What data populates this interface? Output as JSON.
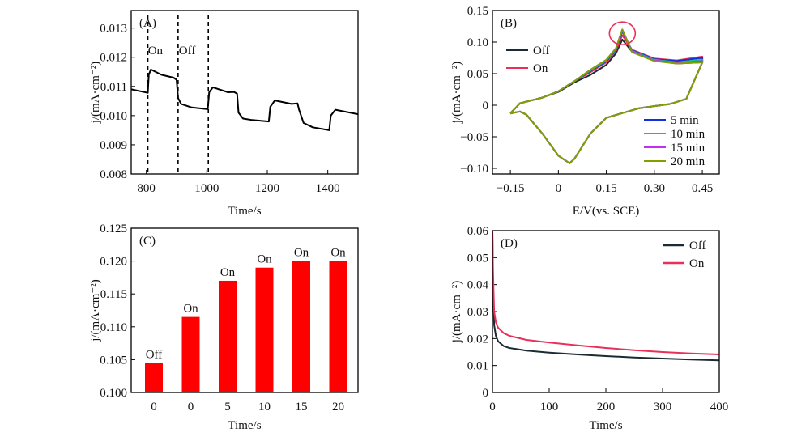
{
  "chart_data": [
    {
      "panel": "(A)",
      "type": "line",
      "xlabel": "Time/s",
      "ylabel": "j/(mA·cm⁻²)",
      "xlim": [
        750,
        1500
      ],
      "ylim": [
        0.008,
        0.0136
      ],
      "xticks": [
        "800",
        "1000",
        "1200",
        "1400"
      ],
      "xtick_values": [
        800,
        1000,
        1200,
        1400
      ],
      "yticks": [
        "0.008",
        "0.009",
        "0.010",
        "0.011",
        "0.012",
        "0.013"
      ],
      "ytick_values": [
        0.008,
        0.009,
        0.01,
        0.011,
        0.012,
        0.013
      ],
      "annotations": [
        {
          "text": "On",
          "x": 830,
          "y": 0.0121
        },
        {
          "text": "Off",
          "x": 935,
          "y": 0.0121
        }
      ],
      "vlines": [
        805,
        905,
        1005
      ],
      "series": [
        {
          "color": "#000000",
          "x": [
            750,
            805,
            808,
            815,
            850,
            890,
            900,
            905,
            915,
            950,
            1003,
            1008,
            1020,
            1070,
            1090,
            1100,
            1105,
            1120,
            1150,
            1205,
            1210,
            1225,
            1280,
            1300,
            1305,
            1320,
            1350,
            1405,
            1410,
            1425,
            1500
          ],
          "y": [
            0.0109,
            0.01078,
            0.0114,
            0.01158,
            0.0114,
            0.0113,
            0.01123,
            0.0106,
            0.0104,
            0.01028,
            0.01022,
            0.0108,
            0.01097,
            0.0108,
            0.01081,
            0.01075,
            0.0101,
            0.0099,
            0.00985,
            0.0098,
            0.0103,
            0.01052,
            0.0104,
            0.01042,
            0.0102,
            0.00975,
            0.0096,
            0.0095,
            0.01,
            0.0102,
            0.01005
          ]
        }
      ]
    },
    {
      "panel": "(B)",
      "type": "line",
      "xlabel": "E/V(vs. SCE)",
      "ylabel": "j/(mA·cm⁻²)",
      "xlim": [
        -0.206,
        0.503
      ],
      "ylim": [
        -0.109,
        0.15
      ],
      "xticks": [
        "−0.15",
        "0",
        "0.15",
        "0.30",
        "0.45"
      ],
      "xtick_values": [
        -0.15,
        0,
        0.15,
        0.3,
        0.45
      ],
      "yticks": [
        "0.15",
        "0.10",
        "0.05",
        "0",
        "−0.05",
        "−0.10"
      ],
      "ytick_values": [
        0.15,
        0.1,
        0.05,
        0,
        -0.05,
        -0.1
      ],
      "highlight_circle": {
        "x": 0.2,
        "y": 0.11,
        "color": "#e8305a"
      },
      "x": [
        -0.15,
        -0.12,
        -0.05,
        0,
        0.05,
        0.1,
        0.15,
        0.18,
        0.2,
        0.23,
        0.3,
        0.37,
        0.45,
        0.45,
        0.4,
        0.35,
        0.25,
        0.15,
        0.1,
        0.05,
        0.035,
        0,
        -0.05,
        -0.1,
        -0.12,
        -0.15
      ],
      "series": [
        {
          "name": "Off",
          "color": "#1c2b33",
          "y": [
            -0.013,
            0.003,
            0.012,
            0.021,
            0.036,
            0.048,
            0.064,
            0.082,
            0.104,
            0.085,
            0.071,
            0.066,
            0.068,
            0.068,
            0.01,
            0.002,
            -0.005,
            -0.02,
            -0.045,
            -0.085,
            -0.092,
            -0.08,
            -0.045,
            -0.015,
            -0.01,
            -0.013
          ]
        },
        {
          "name": "On",
          "color": "#e8305a",
          "y": [
            -0.013,
            0.003,
            0.012,
            0.022,
            0.038,
            0.052,
            0.068,
            0.086,
            0.111,
            0.088,
            0.074,
            0.071,
            0.077,
            0.068,
            0.01,
            0.002,
            -0.005,
            -0.02,
            -0.045,
            -0.085,
            -0.092,
            -0.08,
            -0.045,
            -0.015,
            -0.01,
            -0.013
          ]
        },
        {
          "name": "5 min",
          "color": "#1030e0",
          "y": [
            -0.013,
            0.003,
            0.012,
            0.022,
            0.038,
            0.054,
            0.07,
            0.088,
            0.117,
            0.087,
            0.073,
            0.07,
            0.075,
            0.068,
            0.01,
            0.002,
            -0.005,
            -0.02,
            -0.045,
            -0.085,
            -0.092,
            -0.08,
            -0.045,
            -0.015,
            -0.01,
            -0.013
          ]
        },
        {
          "name": "10 min",
          "color": "#10c090",
          "y": [
            -0.013,
            0.003,
            0.012,
            0.022,
            0.038,
            0.055,
            0.071,
            0.089,
            0.119,
            0.086,
            0.072,
            0.068,
            0.072,
            0.068,
            0.01,
            0.002,
            -0.005,
            -0.02,
            -0.045,
            -0.085,
            -0.092,
            -0.08,
            -0.045,
            -0.015,
            -0.01,
            -0.013
          ]
        },
        {
          "name": "15 min",
          "color": "#c030f0",
          "y": [
            -0.013,
            0.003,
            0.012,
            0.022,
            0.038,
            0.056,
            0.072,
            0.09,
            0.12,
            0.085,
            0.071,
            0.067,
            0.07,
            0.068,
            0.01,
            0.002,
            -0.005,
            -0.02,
            -0.045,
            -0.085,
            -0.092,
            -0.08,
            -0.045,
            -0.015,
            -0.01,
            -0.013
          ]
        },
        {
          "name": "20 min",
          "color": "#80a000",
          "y": [
            -0.013,
            0.003,
            0.012,
            0.022,
            0.038,
            0.056,
            0.072,
            0.09,
            0.12,
            0.084,
            0.07,
            0.066,
            0.068,
            0.068,
            0.01,
            0.002,
            -0.005,
            -0.02,
            -0.045,
            -0.085,
            -0.092,
            -0.08,
            -0.045,
            -0.015,
            -0.01,
            -0.013
          ]
        }
      ]
    },
    {
      "panel": "(C)",
      "type": "bar",
      "xlabel": "Time/s",
      "ylabel": "j/(mA·cm⁻²)",
      "ylim": [
        0.1,
        0.125
      ],
      "categories": [
        "0",
        "0",
        "5",
        "10",
        "15",
        "20"
      ],
      "values": [
        0.1045,
        0.1115,
        0.117,
        0.119,
        0.12,
        0.12
      ],
      "bar_labels": [
        "Off",
        "On",
        "On",
        "On",
        "On",
        "On"
      ],
      "bar_color": "#ff0000",
      "yticks": [
        "0.100",
        "0.105",
        "0.110",
        "0.115",
        "0.120",
        "0.125"
      ],
      "ytick_values": [
        0.1,
        0.105,
        0.11,
        0.115,
        0.12,
        0.125
      ]
    },
    {
      "panel": "(D)",
      "type": "line",
      "xlabel": "Time/s",
      "ylabel": "j/(mA·cm⁻²)",
      "xlim": [
        0,
        400
      ],
      "ylim": [
        0,
        0.06
      ],
      "xticks": [
        "0",
        "100",
        "200",
        "300",
        "400"
      ],
      "xtick_values": [
        0,
        100,
        200,
        300,
        400
      ],
      "yticks": [
        "0",
        "0.01",
        "0.02",
        "0.03",
        "0.04",
        "0.05",
        "0.06"
      ],
      "ytick_values": [
        0,
        0.01,
        0.02,
        0.03,
        0.04,
        0.05,
        0.06
      ],
      "legend": "top-right",
      "series": [
        {
          "name": "Off",
          "color": "#1c2b33",
          "x": [
            0,
            1,
            3,
            6,
            10,
            20,
            30,
            60,
            100,
            150,
            200,
            250,
            300,
            350,
            400
          ],
          "y": [
            0.06,
            0.04,
            0.025,
            0.021,
            0.019,
            0.0172,
            0.0165,
            0.0155,
            0.0148,
            0.0141,
            0.0135,
            0.013,
            0.0126,
            0.0122,
            0.0119
          ]
        },
        {
          "name": "On",
          "color": "#e8305a",
          "x": [
            0,
            1,
            3,
            6,
            10,
            20,
            30,
            60,
            100,
            150,
            200,
            250,
            300,
            350,
            400
          ],
          "y": [
            0.06,
            0.045,
            0.03,
            0.026,
            0.024,
            0.022,
            0.021,
            0.0195,
            0.0185,
            0.0175,
            0.0165,
            0.0157,
            0.015,
            0.0145,
            0.0141
          ]
        }
      ]
    }
  ]
}
